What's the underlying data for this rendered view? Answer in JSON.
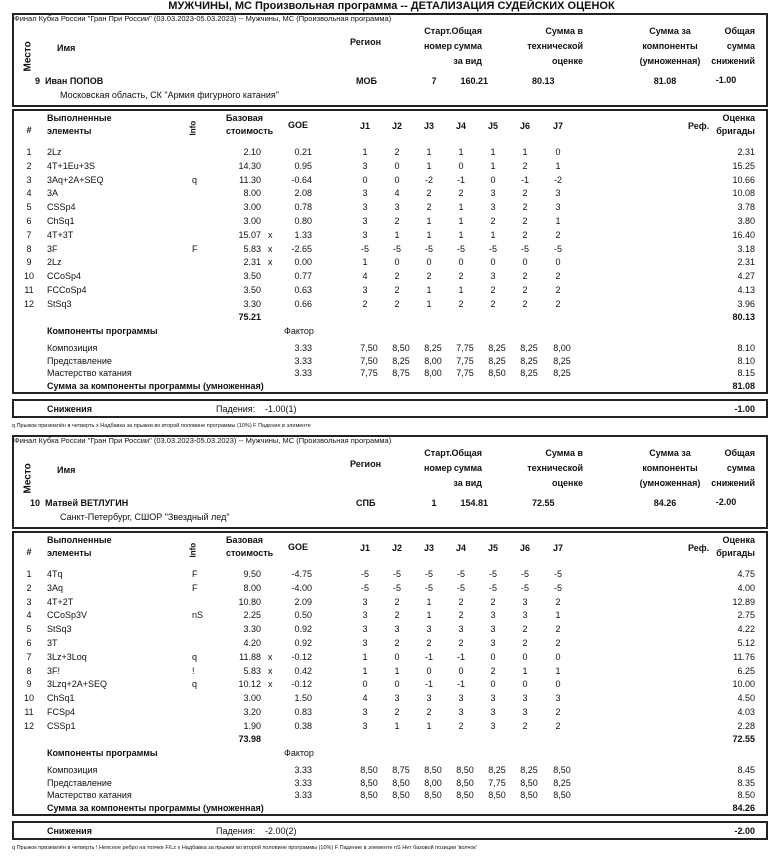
{
  "page_title": "МУЖЧИНЫ, МС Произвольная программа -- ДЕТАЛИЗАЦИЯ СУДЕЙСКИХ ОЦЕНОК",
  "headers": {
    "place": "Место",
    "name": "Имя",
    "region": "Регион",
    "start_no": [
      "Старт.",
      "номер"
    ],
    "total": [
      "Общая",
      "сумма",
      "за вид"
    ],
    "tes": [
      "Сумма в",
      "технической",
      "оценке"
    ],
    "pcs": [
      "Сумма за",
      "компоненты",
      "(умноженная)"
    ],
    "ded": [
      "Общая",
      "сумма",
      "снижений"
    ],
    "num": "#",
    "elements": [
      "Выполненные",
      "элементы"
    ],
    "info": "Info",
    "base": [
      "Базовая",
      "стоимость"
    ],
    "goe": "GOE",
    "judges": [
      "J1",
      "J2",
      "J3",
      "J4",
      "J5",
      "J6",
      "J7"
    ],
    "ref": "Реф.",
    "panel": [
      "Оценка",
      "бригады"
    ],
    "components": "Компоненты программы",
    "factor": "Фактор",
    "pcs_sum": "Сумма за компоненты программы (умноженная)",
    "deductions": "Снижения",
    "falls_label": "Падения:"
  },
  "skaters": [
    {
      "event": "Финал Кубка России \"Гран При России\" (03.03.2023-05.03.2023)  --  Мужчины, МС  (Произвольная программа)",
      "place": "9",
      "name": "Иван ПОПОВ",
      "club": "Московская область, СК \"Армия фигурного катания\"",
      "region": "МОБ",
      "start_no": "7",
      "total": "160.21",
      "tes": "80.13",
      "pcs": "81.08",
      "ded": "-1.00",
      "elements": [
        {
          "n": "1",
          "el": "2Lz",
          "info": "",
          "base": "2.10",
          "x": "",
          "goe": "0.21",
          "j": [
            "1",
            "2",
            "1",
            "1",
            "1",
            "1",
            "0"
          ],
          "score": "2.31"
        },
        {
          "n": "2",
          "el": "4T+1Eu+3S",
          "info": "",
          "base": "14.30",
          "x": "",
          "goe": "0.95",
          "j": [
            "3",
            "0",
            "1",
            "0",
            "1",
            "2",
            "1"
          ],
          "score": "15.25"
        },
        {
          "n": "3",
          "el": "3Aq+2A+SEQ",
          "info": "q",
          "base": "11.30",
          "x": "",
          "goe": "-0.64",
          "j": [
            "0",
            "0",
            "-2",
            "-1",
            "0",
            "-1",
            "-2"
          ],
          "score": "10.66"
        },
        {
          "n": "4",
          "el": "3A",
          "info": "",
          "base": "8.00",
          "x": "",
          "goe": "2.08",
          "j": [
            "3",
            "4",
            "2",
            "2",
            "3",
            "2",
            "3"
          ],
          "score": "10.08"
        },
        {
          "n": "5",
          "el": "CSSp4",
          "info": "",
          "base": "3.00",
          "x": "",
          "goe": "0.78",
          "j": [
            "3",
            "3",
            "2",
            "1",
            "3",
            "2",
            "3"
          ],
          "score": "3.78"
        },
        {
          "n": "6",
          "el": "ChSq1",
          "info": "",
          "base": "3.00",
          "x": "",
          "goe": "0.80",
          "j": [
            "3",
            "2",
            "1",
            "1",
            "2",
            "2",
            "1"
          ],
          "score": "3.80"
        },
        {
          "n": "7",
          "el": "4T+3T",
          "info": "",
          "base": "15.07",
          "x": "x",
          "goe": "1.33",
          "j": [
            "3",
            "1",
            "1",
            "1",
            "1",
            "2",
            "2"
          ],
          "score": "16.40"
        },
        {
          "n": "8",
          "el": "3F",
          "info": "F",
          "base": "5.83",
          "x": "x",
          "goe": "-2.65",
          "j": [
            "-5",
            "-5",
            "-5",
            "-5",
            "-5",
            "-5",
            "-5"
          ],
          "score": "3.18"
        },
        {
          "n": "9",
          "el": "2Lz",
          "info": "",
          "base": "2.31",
          "x": "x",
          "goe": "0.00",
          "j": [
            "1",
            "0",
            "0",
            "0",
            "0",
            "0",
            "0"
          ],
          "score": "2.31"
        },
        {
          "n": "10",
          "el": "CCoSp4",
          "info": "",
          "base": "3.50",
          "x": "",
          "goe": "0.77",
          "j": [
            "4",
            "2",
            "2",
            "2",
            "3",
            "2",
            "2"
          ],
          "score": "4.27"
        },
        {
          "n": "11",
          "el": "FCCoSp4",
          "info": "",
          "base": "3.50",
          "x": "",
          "goe": "0.63",
          "j": [
            "3",
            "2",
            "1",
            "1",
            "2",
            "2",
            "2"
          ],
          "score": "4.13"
        },
        {
          "n": "12",
          "el": "StSq3",
          "info": "",
          "base": "3.30",
          "x": "",
          "goe": "0.66",
          "j": [
            "2",
            "2",
            "1",
            "2",
            "2",
            "2",
            "2"
          ],
          "score": "3.96"
        }
      ],
      "base_total": "75.21",
      "tes_total": "80.13",
      "components": [
        {
          "name": "Композиция",
          "factor": "3.33",
          "j": [
            "7,50",
            "8,50",
            "8,25",
            "7,75",
            "8,25",
            "8,25",
            "8,00"
          ],
          "score": "8.10"
        },
        {
          "name": "Представление",
          "factor": "3.33",
          "j": [
            "7,50",
            "8,25",
            "8,00",
            "7,75",
            "8,25",
            "8,25",
            "8,25"
          ],
          "score": "8.10"
        },
        {
          "name": "Мастерство катания",
          "factor": "3.33",
          "j": [
            "7,75",
            "8,75",
            "8,00",
            "7,75",
            "8,50",
            "8,25",
            "8,25"
          ],
          "score": "8.15"
        }
      ],
      "pcs_total": "81.08",
      "falls": "-1.00(1)",
      "ded_total": "-1.00",
      "legend": "q Прыжок приземлён в четверть   x Надбавка за прыжки во второй половине программы (10%)   F Падение в элементе"
    },
    {
      "event": "Финал Кубка России \"Гран При России\" (03.03.2023-05.03.2023)  --  Мужчины, МС  (Произвольная программа)",
      "place": "10",
      "name": "Матвей ВЕТЛУГИН",
      "club": "Санкт-Петербург, СШОР \"Звездный лед\"",
      "region": "СПБ",
      "start_no": "1",
      "total": "154.81",
      "tes": "72.55",
      "pcs": "84.26",
      "ded": "-2.00",
      "elements": [
        {
          "n": "1",
          "el": "4Tq",
          "info": "F",
          "base": "9.50",
          "x": "",
          "goe": "-4.75",
          "j": [
            "-5",
            "-5",
            "-5",
            "-5",
            "-5",
            "-5",
            "-5"
          ],
          "score": "4.75"
        },
        {
          "n": "2",
          "el": "3Aq",
          "info": "F",
          "base": "8.00",
          "x": "",
          "goe": "-4.00",
          "j": [
            "-5",
            "-5",
            "-5",
            "-5",
            "-5",
            "-5",
            "-5"
          ],
          "score": "4.00"
        },
        {
          "n": "3",
          "el": "4T+2T",
          "info": "",
          "base": "10.80",
          "x": "",
          "goe": "2.09",
          "j": [
            "3",
            "2",
            "1",
            "2",
            "2",
            "3",
            "2"
          ],
          "score": "12.89"
        },
        {
          "n": "4",
          "el": "CCoSp3V",
          "info": "nS",
          "base": "2.25",
          "x": "",
          "goe": "0.50",
          "j": [
            "3",
            "2",
            "1",
            "2",
            "3",
            "3",
            "1"
          ],
          "score": "2.75"
        },
        {
          "n": "5",
          "el": "StSq3",
          "info": "",
          "base": "3.30",
          "x": "",
          "goe": "0.92",
          "j": [
            "3",
            "3",
            "3",
            "3",
            "3",
            "2",
            "2"
          ],
          "score": "4.22"
        },
        {
          "n": "6",
          "el": "3T",
          "info": "",
          "base": "4.20",
          "x": "",
          "goe": "0.92",
          "j": [
            "3",
            "2",
            "2",
            "2",
            "3",
            "2",
            "2"
          ],
          "score": "5.12"
        },
        {
          "n": "7",
          "el": "3Lz+3Loq",
          "info": "q",
          "base": "11.88",
          "x": "x",
          "goe": "-0.12",
          "j": [
            "1",
            "0",
            "-1",
            "-1",
            "0",
            "0",
            "0"
          ],
          "score": "11.76"
        },
        {
          "n": "8",
          "el": "3F!",
          "info": "!",
          "base": "5.83",
          "x": "x",
          "goe": "0.42",
          "j": [
            "1",
            "1",
            "0",
            "0",
            "2",
            "1",
            "1"
          ],
          "score": "6.25"
        },
        {
          "n": "9",
          "el": "3Lzq+2A+SEQ",
          "info": "q",
          "base": "10.12",
          "x": "x",
          "goe": "-0.12",
          "j": [
            "0",
            "0",
            "-1",
            "-1",
            "0",
            "0",
            "0"
          ],
          "score": "10.00"
        },
        {
          "n": "10",
          "el": "ChSq1",
          "info": "",
          "base": "3.00",
          "x": "",
          "goe": "1.50",
          "j": [
            "4",
            "3",
            "3",
            "3",
            "3",
            "3",
            "3"
          ],
          "score": "4.50"
        },
        {
          "n": "11",
          "el": "FCSp4",
          "info": "",
          "base": "3.20",
          "x": "",
          "goe": "0.83",
          "j": [
            "3",
            "2",
            "2",
            "3",
            "3",
            "3",
            "2"
          ],
          "score": "4.03"
        },
        {
          "n": "12",
          "el": "CSSp1",
          "info": "",
          "base": "1.90",
          "x": "",
          "goe": "0.38",
          "j": [
            "3",
            "1",
            "1",
            "2",
            "3",
            "2",
            "2"
          ],
          "score": "2.28"
        }
      ],
      "base_total": "73.98",
      "tes_total": "72.55",
      "components": [
        {
          "name": "Композиция",
          "factor": "3.33",
          "j": [
            "8,50",
            "8,75",
            "8,50",
            "8,50",
            "8,25",
            "8,25",
            "8,50"
          ],
          "score": "8.45"
        },
        {
          "name": "Представление",
          "factor": "3.33",
          "j": [
            "8,50",
            "8,50",
            "8,00",
            "8,50",
            "7,75",
            "8,50",
            "8,25"
          ],
          "score": "8.35"
        },
        {
          "name": "Мастерство катания",
          "factor": "3.33",
          "j": [
            "8,50",
            "8,50",
            "8,50",
            "8,50",
            "8,50",
            "8,50",
            "8,50"
          ],
          "score": "8.50"
        }
      ],
      "pcs_total": "84.26",
      "falls": "-2.00(2)",
      "ded_total": "-2.00",
      "legend": "q Прыжок приземлён в четверть   ! Неясное ребро на толчке F/Lz   x Надбавка за прыжки во второй половине программы (10%)   F Падение в элементе   nS Нет базовой позиции 'волчок'"
    }
  ]
}
